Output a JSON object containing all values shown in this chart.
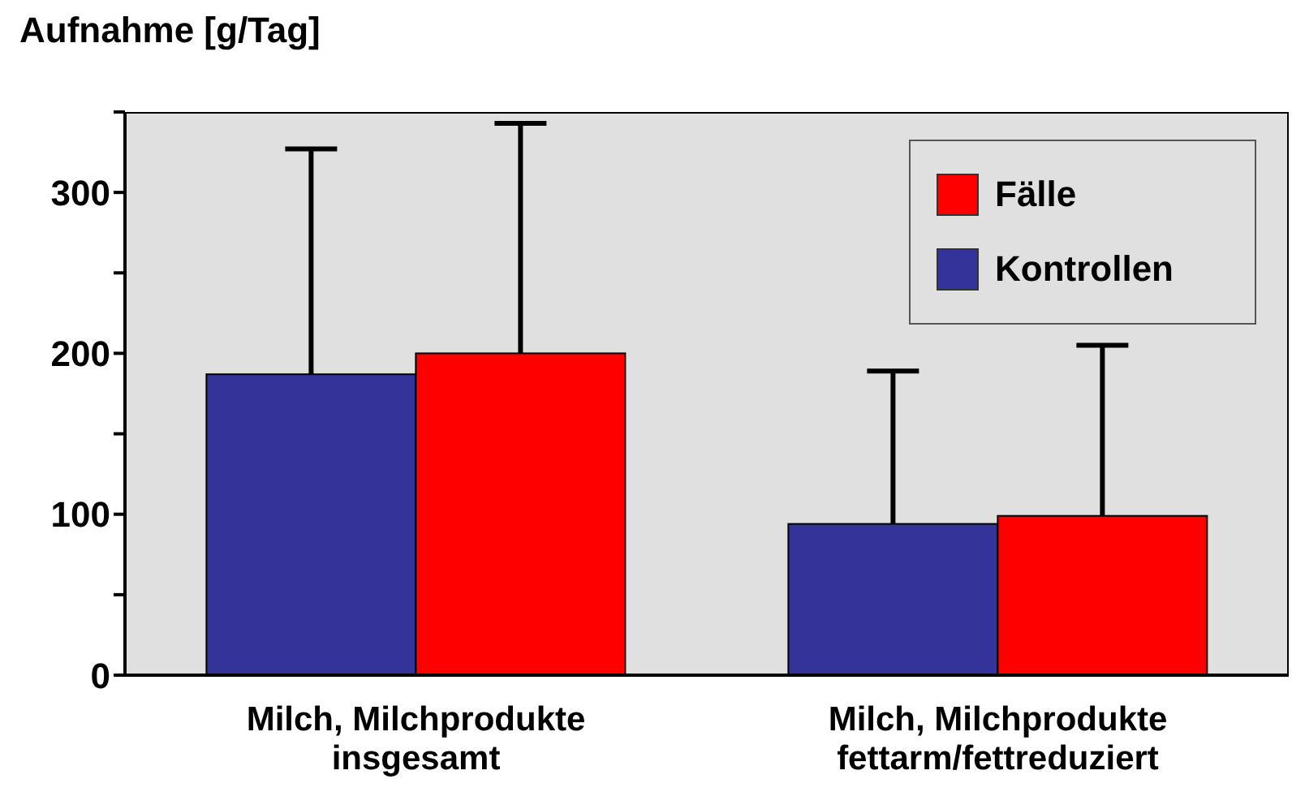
{
  "chart_data": {
    "type": "bar",
    "ylabel": "Aufnahme [g/Tag]",
    "categories": [
      "Milch, Milchprodukte insgesamt",
      "Milch, Milchprodukte fettarm/fettreduziert"
    ],
    "series": [
      {
        "name": "Kontrollen",
        "color": "#333399",
        "values": [
          187,
          94
        ],
        "errors": [
          [
            187,
            327
          ],
          [
            94,
            189
          ]
        ]
      },
      {
        "name": "Fälle",
        "color": "#ff0000",
        "values": [
          200,
          99
        ],
        "errors": [
          [
            200,
            343
          ],
          [
            99,
            205
          ]
        ]
      }
    ],
    "ylim": [
      0,
      350
    ],
    "yticks": [
      0,
      {
        "value": 50,
        "label": null
      },
      100,
      {
        "value": 150,
        "label": null
      },
      200,
      {
        "value": 250,
        "label": null
      },
      300,
      {
        "value": 350,
        "label": null
      }
    ],
    "grid": false,
    "legend": "top right"
  }
}
